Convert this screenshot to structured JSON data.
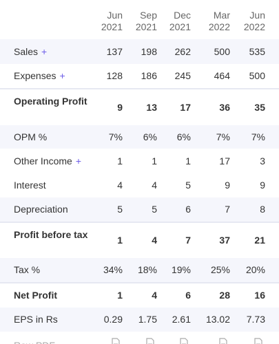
{
  "table": {
    "columns": [
      [
        "Jun",
        "2021"
      ],
      [
        "Sep",
        "2021"
      ],
      [
        "Dec",
        "2021"
      ],
      [
        "Mar",
        "2022"
      ],
      [
        "Jun",
        "2022"
      ]
    ],
    "rows": [
      {
        "label": "Sales",
        "expand": "+",
        "cells": [
          "137",
          "198",
          "262",
          "500",
          "535"
        ]
      },
      {
        "label": "Expenses",
        "expand": "+",
        "cells": [
          "128",
          "186",
          "245",
          "464",
          "500"
        ]
      },
      {
        "label": "Operating Profit",
        "cells": [
          "9",
          "13",
          "17",
          "36",
          "35"
        ]
      },
      {
        "label": "OPM %",
        "cells": [
          "7%",
          "6%",
          "6%",
          "7%",
          "7%"
        ]
      },
      {
        "label": "Other Income",
        "expand": "+",
        "cells": [
          "1",
          "1",
          "1",
          "17",
          "3"
        ]
      },
      {
        "label": "Interest",
        "cells": [
          "4",
          "4",
          "5",
          "9",
          "9"
        ]
      },
      {
        "label": "Depreciation",
        "cells": [
          "5",
          "5",
          "6",
          "7",
          "8"
        ]
      },
      {
        "label": "Profit before tax",
        "cells": [
          "1",
          "4",
          "7",
          "37",
          "21"
        ]
      },
      {
        "label": "Tax %",
        "cells": [
          "34%",
          "18%",
          "19%",
          "25%",
          "20%"
        ]
      },
      {
        "label": "Net Profit",
        "cells": [
          "1",
          "4",
          "6",
          "28",
          "16"
        ]
      },
      {
        "label": "EPS in Rs",
        "cells": [
          "0.29",
          "1.75",
          "2.61",
          "13.02",
          "7.73"
        ]
      },
      {
        "label": "Raw PDF"
      }
    ]
  }
}
